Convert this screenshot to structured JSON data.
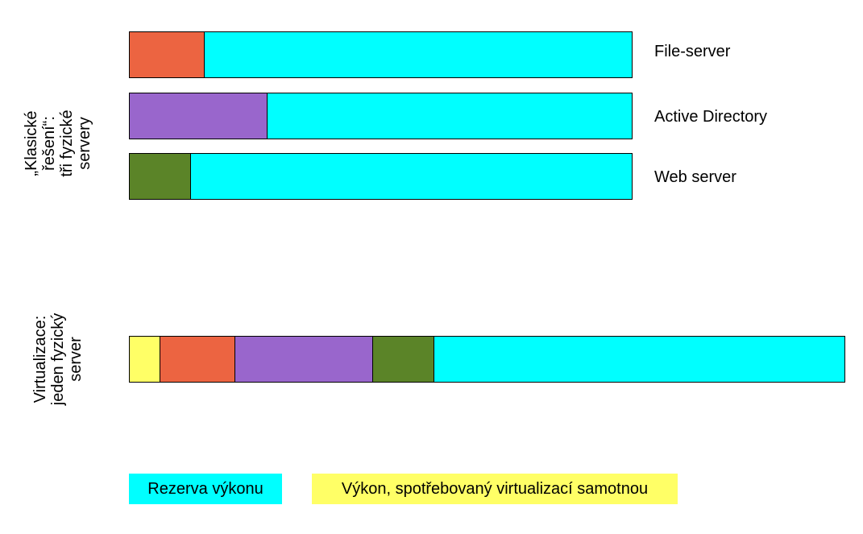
{
  "colors": {
    "reserve": "#00ffff",
    "file_server": "#ec6441",
    "active_directory": "#9966cc",
    "web_server": "#5b8428",
    "virtualization": "#ffff66"
  },
  "classic": {
    "group_label": [
      "„Klasické",
      "řešení“:",
      "tři fyzické",
      "servery"
    ],
    "servers": [
      {
        "label": "File-server",
        "used_fraction": 0.15
      },
      {
        "label": "Active Directory",
        "used_fraction": 0.275
      },
      {
        "label": "Web server",
        "used_fraction": 0.122
      }
    ]
  },
  "virtual": {
    "group_label": [
      "Virtualizace:",
      "jeden fyzický",
      "server"
    ],
    "segments": [
      {
        "key": "virtualization",
        "fraction": 0.043
      },
      {
        "key": "file_server",
        "fraction": 0.105
      },
      {
        "key": "active_directory",
        "fraction": 0.192
      },
      {
        "key": "web_server",
        "fraction": 0.086
      }
    ]
  },
  "legend": {
    "reserve_label": "Rezerva výkonu",
    "virtualization_label": "Výkon, spotřebovaný virtualizací samotnou"
  }
}
